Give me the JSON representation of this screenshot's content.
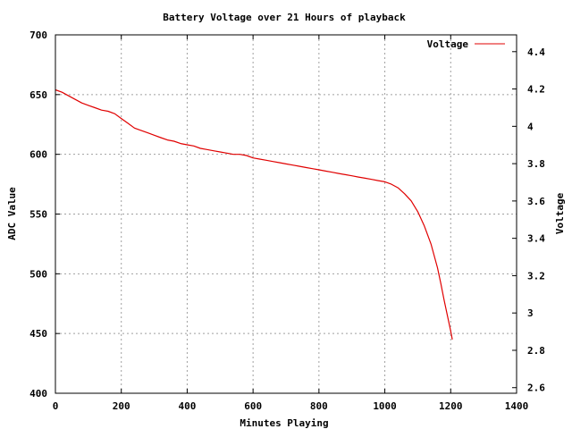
{
  "chart_data": {
    "type": "line",
    "title": "Battery Voltage over 21 Hours of playback",
    "xlabel": "Minutes Playing",
    "ylabel": "ADC Value",
    "y2label": "Voltage",
    "xlim": [
      0,
      1400
    ],
    "ylim": [
      400,
      700
    ],
    "y2lim": [
      2.57,
      4.49
    ],
    "xticks": [
      0,
      200,
      400,
      600,
      800,
      1000,
      1200,
      1400
    ],
    "yticks": [
      400,
      450,
      500,
      550,
      600,
      650,
      700
    ],
    "y2ticks": [
      "2.6",
      "2.8",
      "3",
      "3.2",
      "3.4",
      "3.6",
      "3.8",
      "4",
      "4.2",
      "4.4"
    ],
    "grid": true,
    "legend": "top-right",
    "series": [
      {
        "name": "Voltage",
        "color": "#e00000",
        "x": [
          0,
          20,
          40,
          60,
          80,
          100,
          120,
          140,
          160,
          180,
          200,
          220,
          240,
          260,
          280,
          300,
          320,
          340,
          360,
          380,
          400,
          420,
          440,
          460,
          480,
          500,
          520,
          540,
          560,
          580,
          600,
          620,
          640,
          660,
          680,
          700,
          720,
          740,
          760,
          780,
          800,
          820,
          840,
          860,
          880,
          900,
          920,
          940,
          960,
          980,
          1000,
          1020,
          1040,
          1060,
          1080,
          1100,
          1120,
          1140,
          1160,
          1170,
          1180,
          1190,
          1200,
          1205
        ],
        "y": [
          654,
          652,
          649,
          646,
          643,
          641,
          639,
          637,
          636,
          634,
          630,
          626,
          622,
          620,
          618,
          616,
          614,
          612,
          611,
          609,
          608,
          607,
          605,
          604,
          603,
          602,
          601,
          600,
          600,
          599,
          597,
          596,
          595,
          594,
          593,
          592,
          591,
          590,
          589,
          588,
          587,
          586,
          585,
          584,
          583,
          582,
          581,
          580,
          579,
          578,
          577,
          575,
          572,
          567,
          561,
          552,
          540,
          525,
          505,
          492,
          478,
          465,
          452,
          445
        ]
      }
    ]
  }
}
